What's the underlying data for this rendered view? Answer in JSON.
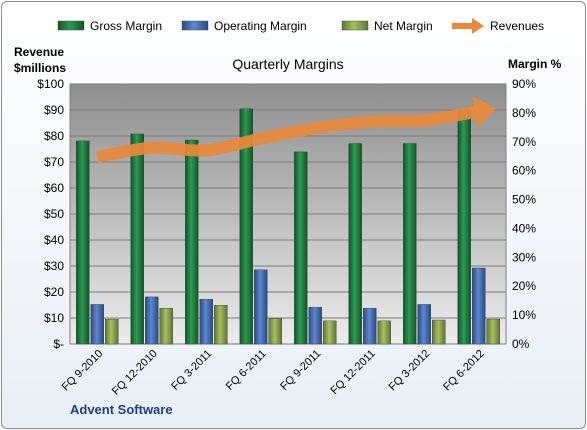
{
  "chart_data": {
    "type": "bar",
    "title": "Quarterly Margins",
    "company": "Advent Software",
    "y_left_label_line1": "Revenue",
    "y_left_label_line2": "$millions",
    "y_right_label": "Margin %",
    "categories": [
      "FQ 9-2010",
      "FQ 12-2010",
      "FQ 3-2011",
      "FQ 6-2011",
      "FQ 9-2011",
      "FQ 12-2011",
      "FQ 3-2012",
      "FQ 6-2012"
    ],
    "y_left_ticks": [
      "$-",
      "$10",
      "$20",
      "$30",
      "$40",
      "$50",
      "$60",
      "$70",
      "$80",
      "$90",
      "$100"
    ],
    "y_right_ticks": [
      "0%",
      "10%",
      "20%",
      "30%",
      "40%",
      "50%",
      "60%",
      "70%",
      "80%",
      "90%"
    ],
    "ylim_left": [
      0,
      100
    ],
    "ylim_right": [
      0,
      90
    ],
    "grid": true,
    "legend_position": "top",
    "series": [
      {
        "name": "Gross Margin",
        "axis": "right",
        "color": "#1e7b3c",
        "values": [
          70.3,
          72.7,
          70.6,
          81.4,
          66.5,
          69.4,
          69.4,
          80.8
        ]
      },
      {
        "name": "Operating Margin",
        "axis": "right",
        "color": "#3f6bb3",
        "values": [
          13.7,
          16.3,
          15.5,
          25.7,
          12.7,
          12.4,
          13.7,
          26.3
        ]
      },
      {
        "name": "Net Margin",
        "axis": "right",
        "color": "#8ca54a",
        "values": [
          8.6,
          12.4,
          13.4,
          8.8,
          8.0,
          8.0,
          8.3,
          8.6
        ]
      },
      {
        "name": "Revenues",
        "axis": "left",
        "type": "line",
        "color": "#e8893c",
        "values": [
          72,
          75.5,
          74.5,
          79,
          83,
          85.5,
          86,
          89.5
        ]
      }
    ]
  }
}
